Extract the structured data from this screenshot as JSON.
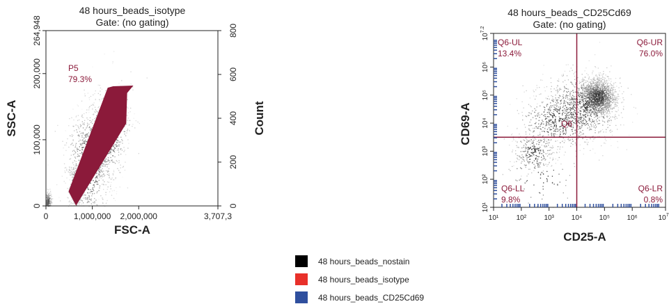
{
  "colors": {
    "gate": "#8b1a3a",
    "axis": "#222222",
    "legend_nostain": "#000000",
    "legend_isotype": "#e8302a",
    "legend_cd25": "#2f4f9e"
  },
  "chart_data": [
    {
      "type": "scatter",
      "title": "48 hours_beads_isotype",
      "subtitle": "Gate: (no gating)",
      "xlabel": "FSC-A",
      "ylabel": "SSC-A",
      "y2label": "Count",
      "x_ticks": [
        "0",
        "1,000,000",
        "2,000,000",
        "3,707,3"
      ],
      "x_tick_values": [
        0,
        1000000,
        2000000,
        3707300
      ],
      "y_ticks": [
        "0",
        "100,000",
        "200,000",
        "264,948"
      ],
      "y_tick_values": [
        0,
        100000,
        200000,
        264948
      ],
      "y2_ticks": [
        "0",
        "200",
        "400",
        "600",
        "800"
      ],
      "xlim": [
        0,
        3707300
      ],
      "ylim": [
        0,
        264948
      ],
      "gate": {
        "name": "P5",
        "percent": "79.3%",
        "polygon": [
          [
            500000,
            22000
          ],
          [
            650000,
            2000
          ],
          [
            1720000,
            125000
          ],
          [
            1740000,
            171000
          ],
          [
            1860000,
            181000
          ],
          [
            1450000,
            180000
          ],
          [
            1340000,
            178000
          ]
        ]
      },
      "density": [
        {
          "x": 920000,
          "y": 65000,
          "sx": 330000,
          "sy": 42000,
          "n": 900,
          "rot": 0.78
        },
        {
          "x": 650000,
          "y": 30000,
          "sx": 90000,
          "sy": 14000,
          "n": 420,
          "rot": 0.7
        },
        {
          "x": 1350000,
          "y": 110000,
          "sx": 330000,
          "sy": 32000,
          "n": 700,
          "rot": 0.82
        },
        {
          "x": 40000,
          "y": 6000,
          "sx": 40000,
          "sy": 8000,
          "n": 250,
          "rot": 0
        }
      ]
    },
    {
      "type": "scatter",
      "title": "48 hours_beads_CD25Cd69",
      "subtitle": "Gate: (no gating)",
      "xlabel": "CD25-A",
      "ylabel": "CD69-A",
      "scale": "log",
      "x_ticks": [
        "10¹",
        "10²",
        "10³",
        "10⁴",
        "10⁵",
        "10⁶",
        "10^7.2"
      ],
      "x_tick_exps": [
        1,
        2,
        3,
        4,
        5,
        6,
        7.2
      ],
      "y_ticks": [
        "10¹",
        "10²",
        "10³",
        "10⁴",
        "10⁵",
        "10⁶",
        "10^7.2"
      ],
      "y_tick_exps": [
        1,
        2,
        3,
        4,
        5,
        6,
        7.2
      ],
      "xlim_exp": [
        1,
        7.2
      ],
      "ylim_exp": [
        1,
        7.2
      ],
      "quadrant_threshold_exp": {
        "x": 4.0,
        "y": 3.5
      },
      "quadrant_name": "Q6",
      "quadrants": [
        {
          "name": "Q6-UL",
          "percent": "13.4%"
        },
        {
          "name": "Q6-UR",
          "percent": "76.0%"
        },
        {
          "name": "Q6-LL",
          "percent": "9.8%"
        },
        {
          "name": "Q6-LR",
          "percent": "0.8%"
        }
      ],
      "density": [
        {
          "x": 4.75,
          "y": 4.95,
          "sx": 0.32,
          "sy": 0.33,
          "n": 1300,
          "rot": 0
        },
        {
          "x": 4.2,
          "y": 4.6,
          "sx": 0.7,
          "sy": 0.6,
          "n": 800,
          "rot": 0
        },
        {
          "x": 3.3,
          "y": 4.1,
          "sx": 0.7,
          "sy": 0.55,
          "n": 500,
          "rot": 0
        },
        {
          "x": 2.45,
          "y": 2.95,
          "sx": 0.35,
          "sy": 0.35,
          "n": 260,
          "rot": 0
        },
        {
          "x": 2.7,
          "y": 2.1,
          "sx": 0.7,
          "sy": 0.6,
          "n": 80,
          "rot": 0
        }
      ]
    }
  ],
  "legend": [
    {
      "label": "48 hours_beads_nostain",
      "color": "#000000"
    },
    {
      "label": "48 hours_beads_isotype",
      "color": "#e8302a"
    },
    {
      "label": "48 hours_beads_CD25Cd69",
      "color": "#2f4f9e"
    }
  ]
}
